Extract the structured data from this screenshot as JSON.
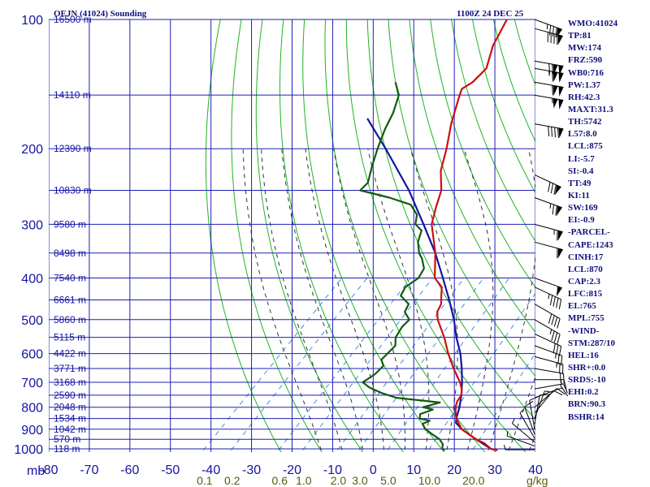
{
  "header": {
    "station": "OEJN (41024) Sounding",
    "time": "1100Z 24 DEC 25"
  },
  "chart_data": {
    "type": "skew-t log-p sounding",
    "title": "OEJN (41024) Sounding",
    "time_label": "1100Z 24 DEC 25",
    "pressure_unit": "mb",
    "mixing_ratio_unit": "g/kg",
    "pressure_range_mb": [
      1000,
      100
    ],
    "temperature_range_c": [
      -80,
      40
    ],
    "pressure_ticks": [
      100,
      200,
      300,
      400,
      500,
      600,
      700,
      800,
      900,
      1000
    ],
    "pressure_tick_labels": [
      "100",
      "200",
      "300",
      "400",
      "500",
      "600",
      "700",
      "800",
      "900",
      "1000"
    ],
    "temperature_ticks": [
      -80,
      -70,
      -60,
      -50,
      -40,
      -30,
      -20,
      -10,
      0,
      10,
      20,
      30,
      40
    ],
    "temperature_tick_labels": [
      "-80",
      "-70",
      "-60",
      "-50",
      "-40",
      "-30",
      "-20",
      "-10",
      "0",
      "10",
      "20",
      "30",
      "40"
    ],
    "mixing_ratio_labels": [
      "0.1",
      "0.2",
      "0.6",
      "1.0",
      "2.0",
      "3.0",
      "5.0",
      "10.0",
      "20.0"
    ],
    "mixing_ratio_values": [
      0.1,
      0.2,
      0.6,
      1.0,
      2.0,
      3.0,
      5.0,
      10.0,
      20.0
    ],
    "height_labels": [
      {
        "p": 100,
        "text": "16500 m"
      },
      {
        "p": 150,
        "text": "14110 m"
      },
      {
        "p": 200,
        "text": "12390 m"
      },
      {
        "p": 250,
        "text": "10830 m"
      },
      {
        "p": 300,
        "text": "9580 m"
      },
      {
        "p": 350,
        "text": "8498 m"
      },
      {
        "p": 400,
        "text": "7540 m"
      },
      {
        "p": 450,
        "text": "6661 m"
      },
      {
        "p": 500,
        "text": "5860 m"
      },
      {
        "p": 550,
        "text": "5115 m"
      },
      {
        "p": 600,
        "text": "4422 m"
      },
      {
        "p": 650,
        "text": "3771 m"
      },
      {
        "p": 700,
        "text": "3168 m"
      },
      {
        "p": 750,
        "text": "2590 m"
      },
      {
        "p": 800,
        "text": "2048 m"
      },
      {
        "p": 850,
        "text": "1534 m"
      },
      {
        "p": 900,
        "text": "1042 m"
      },
      {
        "p": 950,
        "text": "570 m"
      },
      {
        "p": 1000,
        "text": "118 m"
      }
    ],
    "temperature_profile": [
      [
        1008,
        31
      ],
      [
        1000,
        29
      ],
      [
        970,
        26
      ],
      [
        950,
        23
      ],
      [
        925,
        20
      ],
      [
        900,
        17
      ],
      [
        875,
        15
      ],
      [
        850,
        13
      ],
      [
        825,
        11.5
      ],
      [
        800,
        10
      ],
      [
        775,
        9
      ],
      [
        750,
        8.5
      ],
      [
        725,
        7
      ],
      [
        700,
        5
      ],
      [
        650,
        0
      ],
      [
        600,
        -5
      ],
      [
        550,
        -10
      ],
      [
        500,
        -16
      ],
      [
        480,
        -18
      ],
      [
        460,
        -19
      ],
      [
        440,
        -21
      ],
      [
        420,
        -23
      ],
      [
        400,
        -27
      ],
      [
        350,
        -33
      ],
      [
        300,
        -41
      ],
      [
        275,
        -44
      ],
      [
        250,
        -47
      ],
      [
        225,
        -52
      ],
      [
        200,
        -56
      ],
      [
        175,
        -61
      ],
      [
        150,
        -66
      ],
      [
        145,
        -67
      ],
      [
        140,
        -66
      ],
      [
        130,
        -66
      ],
      [
        115,
        -70
      ],
      [
        100,
        -73
      ]
    ],
    "dewpoint_profile": [
      [
        1008,
        18
      ],
      [
        1000,
        17
      ],
      [
        975,
        16
      ],
      [
        950,
        14
      ],
      [
        925,
        11
      ],
      [
        900,
        8
      ],
      [
        875,
        6
      ],
      [
        860,
        7
      ],
      [
        850,
        4
      ],
      [
        830,
        3
      ],
      [
        810,
        5
      ],
      [
        800,
        2
      ],
      [
        780,
        5
      ],
      [
        760,
        -7
      ],
      [
        740,
        -12
      ],
      [
        720,
        -16
      ],
      [
        700,
        -19
      ],
      [
        670,
        -18
      ],
      [
        640,
        -18
      ],
      [
        620,
        -20
      ],
      [
        600,
        -20
      ],
      [
        575,
        -20
      ],
      [
        550,
        -22
      ],
      [
        520,
        -23
      ],
      [
        500,
        -23
      ],
      [
        480,
        -26
      ],
      [
        460,
        -27
      ],
      [
        440,
        -31
      ],
      [
        420,
        -32
      ],
      [
        400,
        -31
      ],
      [
        380,
        -32
      ],
      [
        360,
        -35
      ],
      [
        350,
        -37
      ],
      [
        330,
        -40
      ],
      [
        310,
        -42
      ],
      [
        300,
        -45
      ],
      [
        285,
        -47
      ],
      [
        270,
        -51
      ],
      [
        260,
        -58
      ],
      [
        250,
        -67
      ],
      [
        240,
        -67
      ],
      [
        220,
        -70
      ],
      [
        200,
        -73
      ],
      [
        180,
        -76
      ],
      [
        165,
        -78
      ],
      [
        150,
        -81
      ],
      [
        140,
        -85
      ]
    ],
    "parcel_profile": [
      [
        1008,
        31
      ],
      [
        1000,
        29
      ],
      [
        950,
        23
      ],
      [
        900,
        17
      ],
      [
        870,
        14
      ],
      [
        850,
        13
      ],
      [
        800,
        11
      ],
      [
        750,
        8.5
      ],
      [
        700,
        5.5
      ],
      [
        650,
        2
      ],
      [
        600,
        -2
      ],
      [
        550,
        -7
      ],
      [
        500,
        -12
      ],
      [
        450,
        -18
      ],
      [
        400,
        -25
      ],
      [
        350,
        -33
      ],
      [
        300,
        -43
      ],
      [
        250,
        -55
      ],
      [
        200,
        -71
      ],
      [
        170,
        -83
      ]
    ],
    "wind_barbs": [
      {
        "p": 1005,
        "dir": 90,
        "spd": 5
      },
      {
        "p": 985,
        "dir": 110,
        "spd": 5
      },
      {
        "p": 965,
        "dir": 130,
        "spd": 5
      },
      {
        "p": 945,
        "dir": 150,
        "spd": 5
      },
      {
        "p": 925,
        "dir": 160,
        "spd": 10
      },
      {
        "p": 900,
        "dir": 170,
        "spd": 10
      },
      {
        "p": 875,
        "dir": 190,
        "spd": 10
      },
      {
        "p": 850,
        "dir": 200,
        "spd": 5
      },
      {
        "p": 825,
        "dir": 220,
        "spd": 10
      },
      {
        "p": 800,
        "dir": 230,
        "spd": 10
      },
      {
        "p": 760,
        "dir": 250,
        "spd": 10
      },
      {
        "p": 725,
        "dir": 260,
        "spd": 15
      },
      {
        "p": 690,
        "dir": 270,
        "spd": 15
      },
      {
        "p": 650,
        "dir": 280,
        "spd": 20
      },
      {
        "p": 610,
        "dir": 285,
        "spd": 25
      },
      {
        "p": 575,
        "dir": 290,
        "spd": 25
      },
      {
        "p": 540,
        "dir": 295,
        "spd": 30
      },
      {
        "p": 500,
        "dir": 300,
        "spd": 35
      },
      {
        "p": 460,
        "dir": 300,
        "spd": 40
      },
      {
        "p": 420,
        "dir": 295,
        "spd": 45
      },
      {
        "p": 400,
        "dir": 290,
        "spd": 50
      },
      {
        "p": 330,
        "dir": 285,
        "spd": 60
      },
      {
        "p": 300,
        "dir": 285,
        "spd": 65
      },
      {
        "p": 260,
        "dir": 290,
        "spd": 75
      },
      {
        "p": 230,
        "dir": 295,
        "spd": 80
      },
      {
        "p": 175,
        "dir": 280,
        "spd": 90
      },
      {
        "p": 150,
        "dir": 280,
        "spd": 105
      },
      {
        "p": 140,
        "dir": 280,
        "spd": 110
      },
      {
        "p": 130,
        "dir": 280,
        "spd": 115
      },
      {
        "p": 125,
        "dir": 280,
        "spd": 120
      },
      {
        "p": 105,
        "dir": 285,
        "spd": 90
      },
      {
        "p": 100,
        "dir": 290,
        "spd": 85
      }
    ],
    "colors": {
      "grid": "#1e1eb4",
      "dry_adiabat": "#20b420",
      "moist_adiabat": "#333333",
      "mixing_ratio": "#3c8ce6",
      "temperature": "#cc1010",
      "dewpoint": "#105a10",
      "parcel": "#1414a0",
      "wind_barb": "#000000"
    }
  },
  "stats": [
    "WMO:41024",
    "TP:81",
    "MW:174",
    "FRZ:590",
    "WB0:716",
    "PW:1.37",
    "RH:42.3",
    "MAXT:31.3",
    "TH:5742",
    "L57:8.0",
    "LCL:875",
    "LI:-5.7",
    "SI:-0.4",
    "TT:49",
    "KI:11",
    "SW:169",
    "EI:-0.9",
    "-PARCEL-",
    "CAPE:1243",
    "CINH:17",
    "LCL:870",
    "CAP:2.3",
    "LFC:815",
    "EL:765",
    "MPL:755",
    "-WIND-",
    "STM:287/10",
    "HEL:16",
    "SHR+:0.0",
    "SRDS:-10",
    "EHI:0.2",
    "BRN:90.3",
    "BSHR:14"
  ]
}
